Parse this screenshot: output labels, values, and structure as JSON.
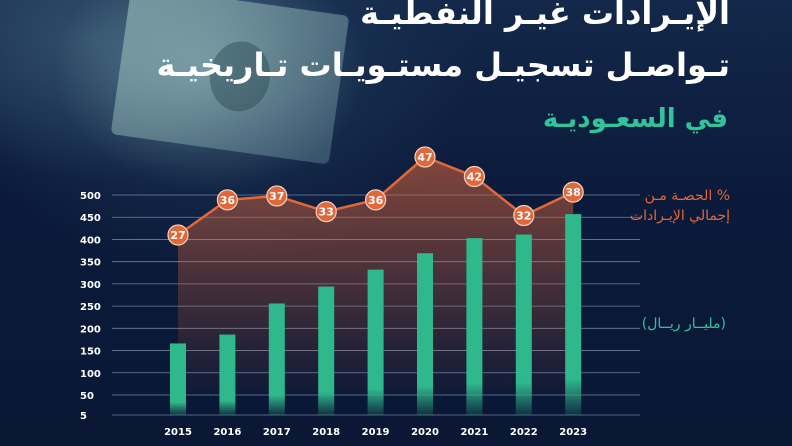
{
  "header": {
    "title_line1": "الإيـرادات غيـر النفطيـة",
    "title_line2": "تـواصـل تسجيـل مستـويـات تـاريخيـة",
    "title_line3": "في السعـوديـة"
  },
  "legend": {
    "share_line1": "% الحصـة مـن",
    "share_line2": "إجمالي الإيـرادات",
    "unit": "(مليــار ريــال)"
  },
  "colors": {
    "bar": "#2fb88c",
    "line": "#e1683a",
    "grid": "#6f7f9a",
    "background": "#0b1a3a"
  },
  "chart_data": {
    "type": "bar",
    "categories": [
      "2015",
      "2016",
      "2017",
      "2018",
      "2019",
      "2020",
      "2021",
      "2022",
      "2023"
    ],
    "series": [
      {
        "values": [
          166,
          186,
          256,
          294,
          332,
          369,
          403,
          411,
          457
        ]
      },
      {
        "name": "% الحصـة مـن إجمالي الإيـرادات",
        "type": "line",
        "values": [
          27,
          36,
          37,
          33,
          36,
          47,
          42,
          32,
          38
        ]
      }
    ],
    "ylim": [
      5,
      500
    ],
    "yticks": [
      "5",
      "50",
      "100",
      "150",
      "200",
      "250",
      "300",
      "350",
      "400",
      "450",
      "500"
    ],
    "grid": true
  }
}
